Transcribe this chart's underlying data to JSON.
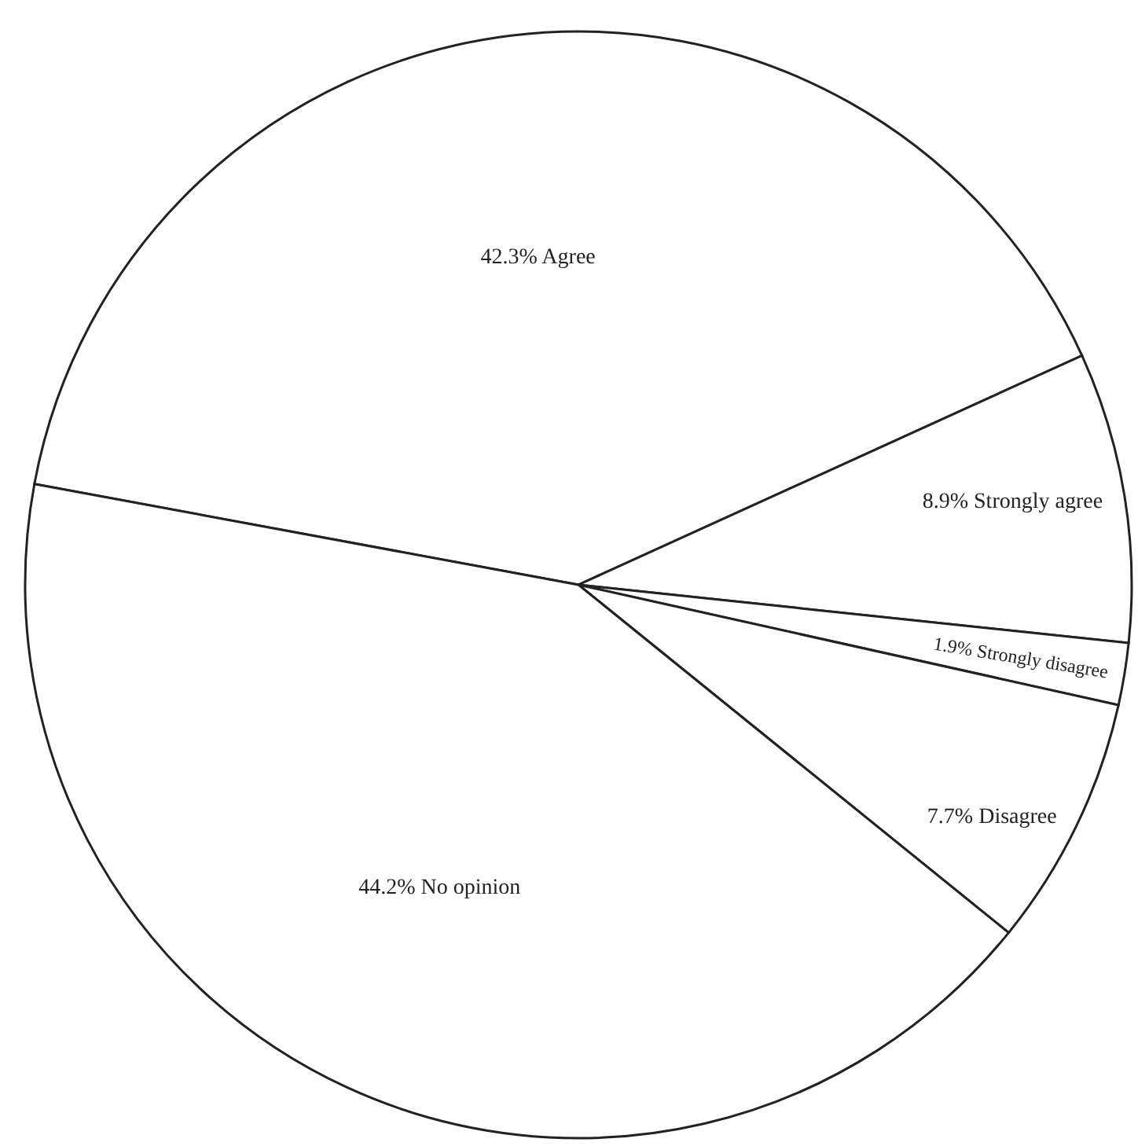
{
  "chart_data": {
    "type": "pie",
    "categories": [
      "Agree",
      "Strongly agree",
      "Strongly disagree",
      "Disagree",
      "No opinion"
    ],
    "values": [
      42.3,
      8.9,
      1.9,
      7.7,
      44.2
    ],
    "value_labels": [
      "42.3%",
      "8.9%",
      "1.9%",
      "7.7%",
      "44.2%"
    ],
    "colors": [
      "#ffffff",
      "#ffffff",
      "#ffffff",
      "#ffffff",
      "#ffffff"
    ]
  }
}
